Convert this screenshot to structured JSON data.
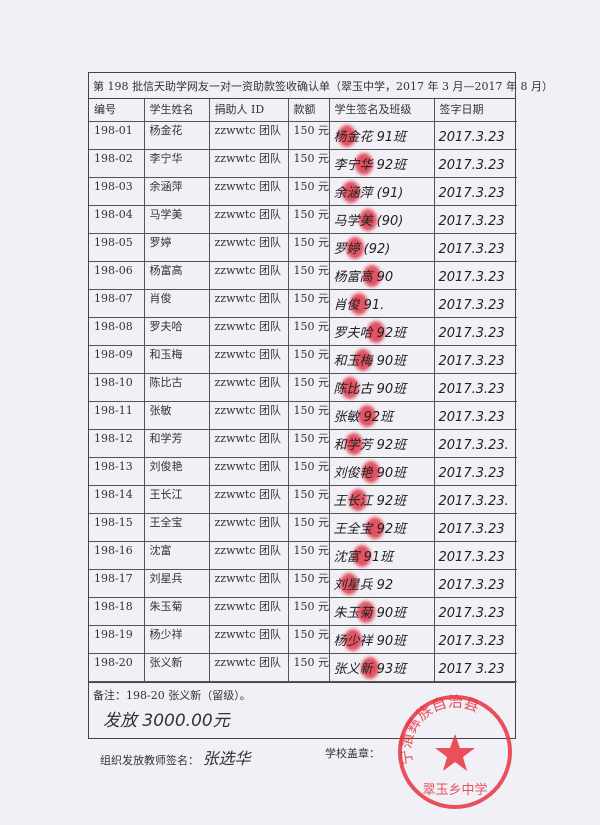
{
  "title": "第 198 批信天助学网友一对一资助款签收确认单（翠玉中学，2017 年 3 月—2017 年 8 月）",
  "headers": [
    "编号",
    "学生姓名",
    "捐助人 ID",
    "款额",
    "学生签名及班级",
    "签字日期"
  ],
  "rows": [
    {
      "id": "198-01",
      "name": "杨金花",
      "donor": "zzwwtc 团队",
      "amount": "150 元",
      "sign": "杨金花 91班",
      "date": "2017.3.23"
    },
    {
      "id": "198-02",
      "name": "李宁华",
      "donor": "zzwwtc 团队",
      "amount": "150 元",
      "sign": "李宁华 92班",
      "date": "2017.3.23"
    },
    {
      "id": "198-03",
      "name": "余涵萍",
      "donor": "zzwwtc 团队",
      "amount": "150 元",
      "sign": "余涵萍 (91)",
      "date": "2017.3.23"
    },
    {
      "id": "198-04",
      "name": "马学美",
      "donor": "zzwwtc 团队",
      "amount": "150 元",
      "sign": "马学美 (90)",
      "date": "2017.3.23"
    },
    {
      "id": "198-05",
      "name": "罗婷",
      "donor": "zzwwtc 团队",
      "amount": "150 元",
      "sign": "罗婷 (92)",
      "date": "2017.3.23"
    },
    {
      "id": "198-06",
      "name": "杨富高",
      "donor": "zzwwtc 团队",
      "amount": "150 元",
      "sign": "杨富高 90",
      "date": "2017.3.23"
    },
    {
      "id": "198-07",
      "name": "肖俊",
      "donor": "zzwwtc 团队",
      "amount": "150 元",
      "sign": "肖俊 91.",
      "date": "2017.3.23"
    },
    {
      "id": "198-08",
      "name": "罗夫哈",
      "donor": "zzwwtc 团队",
      "amount": "150 元",
      "sign": "罗夫哈 92班",
      "date": "2017.3.23"
    },
    {
      "id": "198-09",
      "name": "和玉梅",
      "donor": "zzwwtc 团队",
      "amount": "150 元",
      "sign": "和玉梅 90班",
      "date": "2017.3.23"
    },
    {
      "id": "198-10",
      "name": "陈比古",
      "donor": "zzwwtc 团队",
      "amount": "150 元",
      "sign": "陈比古 90班",
      "date": "2017.3.23"
    },
    {
      "id": "198-11",
      "name": "张敏",
      "donor": "zzwwtc 团队",
      "amount": "150 元",
      "sign": "张敏 92班",
      "date": "2017.3.23"
    },
    {
      "id": "198-12",
      "name": "和学芳",
      "donor": "zzwwtc 团队",
      "amount": "150 元",
      "sign": "和学芳 92班",
      "date": "2017.3.23."
    },
    {
      "id": "198-13",
      "name": "刘俊艳",
      "donor": "zzwwtc 团队",
      "amount": "150 元",
      "sign": "刘俊艳 90班",
      "date": "2017.3.23"
    },
    {
      "id": "198-14",
      "name": "王长江",
      "donor": "zzwwtc 团队",
      "amount": "150 元",
      "sign": "王长江 92班",
      "date": "2017.3.23."
    },
    {
      "id": "198-15",
      "name": "王全宝",
      "donor": "zzwwtc 团队",
      "amount": "150 元",
      "sign": "王全宝 92班",
      "date": "2017.3.23"
    },
    {
      "id": "198-16",
      "name": "沈富",
      "donor": "zzwwtc 团队",
      "amount": "150 元",
      "sign": "沈富 91班",
      "date": "2017.3.23"
    },
    {
      "id": "198-17",
      "name": "刘星兵",
      "donor": "zzwwtc 团队",
      "amount": "150 元",
      "sign": "刘星兵 92",
      "date": "2017.3.23"
    },
    {
      "id": "198-18",
      "name": "朱玉菊",
      "donor": "zzwwtc 团队",
      "amount": "150 元",
      "sign": "朱玉菊 90班",
      "date": "2017.3.23"
    },
    {
      "id": "198-19",
      "name": "杨少祥",
      "donor": "zzwwtc 团队",
      "amount": "150 元",
      "sign": "杨少祥 90班",
      "date": "2017.3.23"
    },
    {
      "id": "198-20",
      "name": "张义新",
      "donor": "zzwwtc 团队",
      "amount": "150 元",
      "sign": "张义新 93班",
      "date": "2017 3.23"
    }
  ],
  "remark": "备注：198-20 张义新（留级）。",
  "remark_handwritten": "发放 3000.00元",
  "teacher_label": "组织发放教师签名：",
  "teacher_sign": "张选华",
  "school_label": "学校盖章：",
  "stamp_text": "宁蒗彝族自治县翠玉乡中学",
  "colors": {
    "stamp": "#e8343f",
    "ink": "#333333"
  }
}
